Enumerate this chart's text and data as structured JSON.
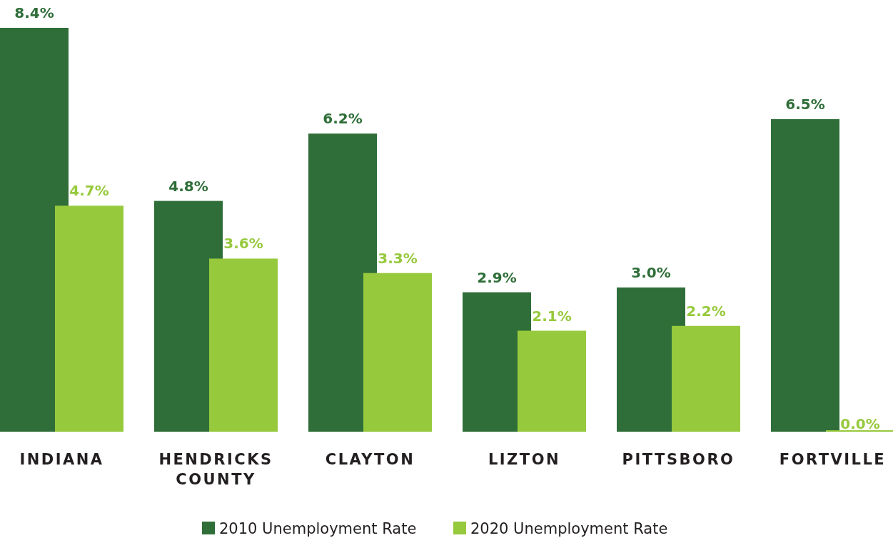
{
  "chart_data": {
    "type": "bar",
    "categories": [
      "INDIANA",
      "HENDRICKS COUNTY",
      "CLAYTON",
      "LIZTON",
      "PITTSBORO",
      "FORTVILLE"
    ],
    "series": [
      {
        "name": "2010 Unemployment Rate",
        "color": "#2f6e38",
        "values": [
          8.4,
          4.8,
          6.2,
          2.9,
          3.0,
          6.5
        ],
        "value_labels": [
          "8.4%",
          "4.8%",
          "6.2%",
          "2.9%",
          "3.0%",
          "6.5%"
        ]
      },
      {
        "name": "2020 Unemployment Rate",
        "color": "#97c93d",
        "values": [
          4.7,
          3.6,
          3.3,
          2.1,
          2.2,
          0.0
        ],
        "value_labels": [
          "4.7%",
          "3.6%",
          "3.3%",
          "2.1%",
          "2.2%",
          "0.0%"
        ]
      }
    ],
    "legend": "bottom"
  }
}
